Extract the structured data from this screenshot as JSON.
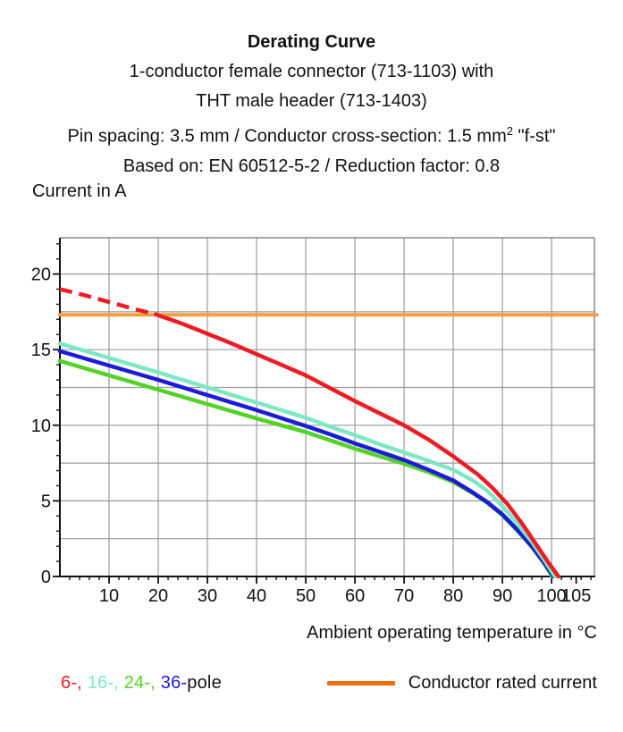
{
  "title": {
    "line1": "Derating Curve",
    "line2": "1-conductor female connector (713-1103) with",
    "line3": "THT male header (713-1403)",
    "line4_prefix": "Pin spacing: 3.5 mm / Conductor cross-section: 1.5 mm",
    "line4_sup": "2",
    "line4_suffix": " \"f-st\"",
    "line5": "Based on: EN 60512-5-2 / Reduction factor: 0.8"
  },
  "y_axis_title": "Current in A",
  "x_axis_title": "Ambient operating temperature in °C",
  "legend": {
    "pole_segments": [
      {
        "label": "6-, ",
        "color": "#ED1C24"
      },
      {
        "label": "16-, ",
        "color": "#7CE8C6"
      },
      {
        "label": "24-, ",
        "color": "#53D327"
      },
      {
        "label": "36-",
        "color": "#1C1CD8"
      },
      {
        "label": "pole",
        "color": "#111111"
      }
    ],
    "rated_label": "Conductor rated current",
    "rated_color": "#ED6F12"
  },
  "chart_data": {
    "type": "line",
    "title": "Derating Curve",
    "xlabel": "Ambient operating temperature in °C",
    "ylabel": "Current in A",
    "xlim": [
      0,
      108.7
    ],
    "ylim": [
      0,
      22.4
    ],
    "x_major_ticks": [
      10,
      20,
      30,
      40,
      50,
      60,
      70,
      80,
      90,
      100,
      105
    ],
    "x_minor_tick_step": 2,
    "y_major_ticks": [
      0,
      5,
      10,
      15,
      20
    ],
    "y_minor_tick_step": 1,
    "x_gridlines": [
      10,
      20,
      30,
      40,
      50,
      60,
      70,
      80,
      90,
      100
    ],
    "y_gridlines": [
      2.5,
      5,
      7.5,
      10,
      12.5,
      15,
      17.5,
      20
    ],
    "grid": true,
    "legend_position": "bottom",
    "colors": {
      "grid": "#9B9B9B",
      "border": "#8A8A8A",
      "axis": "#111111",
      "text": "#111111"
    },
    "series": [
      {
        "name": "Conductor rated current",
        "color": "#F2A13A",
        "stroke_width": 4,
        "points": [
          [
            0,
            17.3
          ],
          [
            109.2,
            17.3
          ]
        ]
      },
      {
        "name": "24-pole",
        "color": "#53D327",
        "stroke_width": 4.5,
        "points": [
          [
            0,
            14.25
          ],
          [
            10,
            13.3
          ],
          [
            20,
            12.35
          ],
          [
            30,
            11.4
          ],
          [
            40,
            10.45
          ],
          [
            50,
            9.55
          ],
          [
            55,
            9.0
          ],
          [
            60,
            8.45
          ],
          [
            65,
            7.95
          ],
          [
            70,
            7.45
          ],
          [
            75,
            6.9
          ],
          [
            80,
            6.25
          ],
          [
            84,
            5.5
          ],
          [
            87,
            4.85
          ],
          [
            90,
            4.05
          ],
          [
            93,
            3.05
          ],
          [
            96,
            1.95
          ],
          [
            98.5,
            0.85
          ],
          [
            100.1,
            0
          ]
        ]
      },
      {
        "name": "36-pole",
        "color": "#1C1CD8",
        "stroke_width": 4.5,
        "points": [
          [
            0,
            14.9
          ],
          [
            10,
            13.95
          ],
          [
            20,
            13.0
          ],
          [
            30,
            12.0
          ],
          [
            40,
            11.0
          ],
          [
            50,
            9.95
          ],
          [
            55,
            9.4
          ],
          [
            60,
            8.8
          ],
          [
            65,
            8.25
          ],
          [
            70,
            7.7
          ],
          [
            75,
            7.05
          ],
          [
            80,
            6.35
          ],
          [
            84,
            5.55
          ],
          [
            87,
            4.9
          ],
          [
            90,
            4.1
          ],
          [
            93,
            3.1
          ],
          [
            96,
            2.0
          ],
          [
            98.5,
            0.9
          ],
          [
            100.4,
            0
          ]
        ]
      },
      {
        "name": "16-pole",
        "color": "#7CE8C6",
        "stroke_width": 4.5,
        "points": [
          [
            0,
            15.4
          ],
          [
            10,
            14.45
          ],
          [
            20,
            13.5
          ],
          [
            30,
            12.5
          ],
          [
            40,
            11.5
          ],
          [
            50,
            10.5
          ],
          [
            55,
            9.9
          ],
          [
            60,
            9.35
          ],
          [
            65,
            8.75
          ],
          [
            70,
            8.2
          ],
          [
            75,
            7.65
          ],
          [
            80,
            7.05
          ],
          [
            84,
            6.35
          ],
          [
            87,
            5.65
          ],
          [
            90,
            4.65
          ],
          [
            93,
            3.5
          ],
          [
            96,
            2.3
          ],
          [
            98.5,
            1.1
          ],
          [
            100.7,
            0
          ]
        ]
      },
      {
        "name": "6-pole",
        "color": "#ED1C24",
        "stroke_width": 4.5,
        "dash_segment": {
          "dash": "14 8",
          "points": [
            [
              0,
              19.0
            ],
            [
              5,
              18.6
            ],
            [
              10,
              18.15
            ],
            [
              15,
              17.7
            ],
            [
              19.5,
              17.33
            ]
          ]
        },
        "points": [
          [
            19.5,
            17.33
          ],
          [
            25,
            16.7
          ],
          [
            30,
            16.05
          ],
          [
            35,
            15.4
          ],
          [
            40,
            14.7
          ],
          [
            45,
            14.0
          ],
          [
            50,
            13.3
          ],
          [
            55,
            12.45
          ],
          [
            60,
            11.6
          ],
          [
            65,
            10.8
          ],
          [
            70,
            10.0
          ],
          [
            75,
            9.05
          ],
          [
            80,
            7.95
          ],
          [
            85,
            6.75
          ],
          [
            88,
            5.85
          ],
          [
            91,
            4.8
          ],
          [
            94,
            3.5
          ],
          [
            97,
            2.05
          ],
          [
            99.5,
            0.85
          ],
          [
            101.4,
            0
          ]
        ]
      }
    ]
  }
}
